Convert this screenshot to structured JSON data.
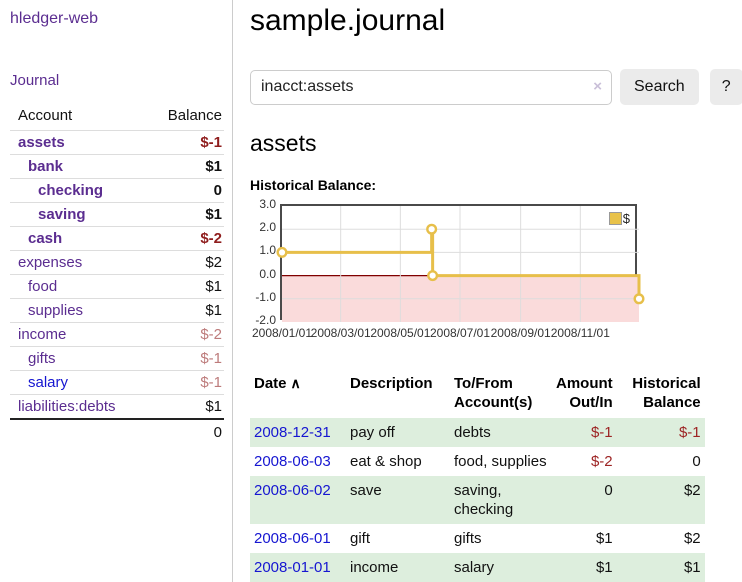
{
  "colors": {
    "link_purple": "#5b2d90",
    "link_blue": "#1616d1",
    "negative_strong": "#8f1d1d",
    "negative_muted": "#bd7b7b",
    "table_stripe_green": "#ddeedd",
    "chart_line_gold": "#e7bf4a",
    "chart_negative_fill": "#fadbdb",
    "chart_zero_line": "#800000",
    "button_gray": "#ebebeb"
  },
  "sidebar": {
    "app_title": "hledger-web",
    "nav_journal": "Journal",
    "accounts": {
      "col_account": "Account",
      "col_balance": "Balance",
      "rows": [
        {
          "name": "assets",
          "balance": "$-1",
          "level": 1
        },
        {
          "name": "bank",
          "balance": "$1",
          "level": 2
        },
        {
          "name": "checking",
          "balance": "0",
          "level": 3
        },
        {
          "name": "saving",
          "balance": "$1",
          "level": 3
        },
        {
          "name": "cash",
          "balance": "$-2",
          "level": 2
        },
        {
          "name": "expenses",
          "balance": "$2",
          "level": 1
        },
        {
          "name": "food",
          "balance": "$1",
          "level": 2
        },
        {
          "name": "supplies",
          "balance": "$1",
          "level": 2
        },
        {
          "name": "income",
          "balance": "$-2",
          "level": 1
        },
        {
          "name": "gifts",
          "balance": "$-1",
          "level": 2
        },
        {
          "name": "salary",
          "balance": "$-1",
          "level": 2
        },
        {
          "name": "liabilities:debts",
          "balance": "$1",
          "level": 1
        }
      ],
      "total": "0"
    }
  },
  "main": {
    "title": "sample.journal",
    "search": {
      "value": "inacct:assets",
      "clear": "×",
      "search_button": "Search",
      "help_button": "?"
    },
    "heading": "assets",
    "chart_title": "Historical Balance:",
    "register": {
      "headers": {
        "date": {
          "line1": "Date",
          "sort": "∧"
        },
        "description": {
          "line1": "Description"
        },
        "accounts": {
          "line1": "To/From",
          "line2": "Account(s)"
        },
        "amount": {
          "line1": "Amount",
          "line2": "Out/In"
        },
        "balance": {
          "line1": "Historical",
          "line2": "Balance"
        }
      },
      "rows": [
        {
          "date": "2008-12-31",
          "description": "pay off",
          "accounts": "debts",
          "amount": "$-1",
          "balance": "$-1"
        },
        {
          "date": "2008-06-03",
          "description": "eat & shop",
          "accounts": "food, supplies",
          "amount": "$-2",
          "balance": "0"
        },
        {
          "date": "2008-06-02",
          "description": "save",
          "accounts": "saving, checking",
          "amount": "0",
          "balance": "$2"
        },
        {
          "date": "2008-06-01",
          "description": "gift",
          "accounts": "gifts",
          "amount": "$1",
          "balance": "$2"
        },
        {
          "date": "2008-01-01",
          "description": "income",
          "accounts": "salary",
          "amount": "$1",
          "balance": "$1"
        }
      ]
    }
  },
  "chart_data": {
    "type": "line",
    "title": "Historical Balance:",
    "step": "after",
    "series": [
      {
        "name": "$",
        "points": [
          [
            "2008-01-01",
            1.0
          ],
          [
            "2008-06-02",
            2.0
          ],
          [
            "2008-06-03",
            0.0
          ],
          [
            "2008-12-31",
            -1.0
          ]
        ]
      }
    ],
    "x_domain": [
      "2008-01-01",
      "2008-12-31"
    ],
    "ylim": [
      -2.0,
      3.0
    ],
    "yticks": [
      "3.0",
      "2.0",
      "1.0",
      "0.0",
      "-1.0",
      "-2.0"
    ],
    "xticks": [
      "2008/01/01",
      "2008/03/01",
      "2008/05/01",
      "2008/07/01",
      "2008/09/01",
      "2008/11/01"
    ],
    "legend": {
      "position": "top-right",
      "label": "$"
    },
    "grid": true,
    "negative_region_shaded": true
  }
}
